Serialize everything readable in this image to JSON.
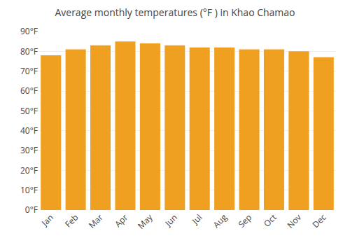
{
  "chart_data": {
    "type": "bar",
    "title": "Average monthly temperatures (°F ) in Khao Chamao",
    "categories": [
      "Jan",
      "Feb",
      "Mar",
      "Apr",
      "May",
      "Jun",
      "Jul",
      "Aug",
      "Sep",
      "Oct",
      "Nov",
      "Dec"
    ],
    "values": [
      78,
      81,
      83,
      85,
      84,
      83,
      82,
      82,
      81,
      81,
      80,
      77
    ],
    "color": "#F0A020",
    "ylim": [
      0,
      90
    ],
    "yticks": [
      {
        "value": 0,
        "label": "0°F"
      },
      {
        "value": 10,
        "label": "10°F"
      },
      {
        "value": 20,
        "label": "20°F"
      },
      {
        "value": 30,
        "label": "30°F"
      },
      {
        "value": 40,
        "label": "40°F"
      },
      {
        "value": 50,
        "label": "50°F"
      },
      {
        "value": 60,
        "label": "60°F"
      },
      {
        "value": 70,
        "label": "70°F"
      },
      {
        "value": 80,
        "label": "80°F"
      },
      {
        "value": 90,
        "label": "90°F"
      }
    ],
    "grid": true
  }
}
